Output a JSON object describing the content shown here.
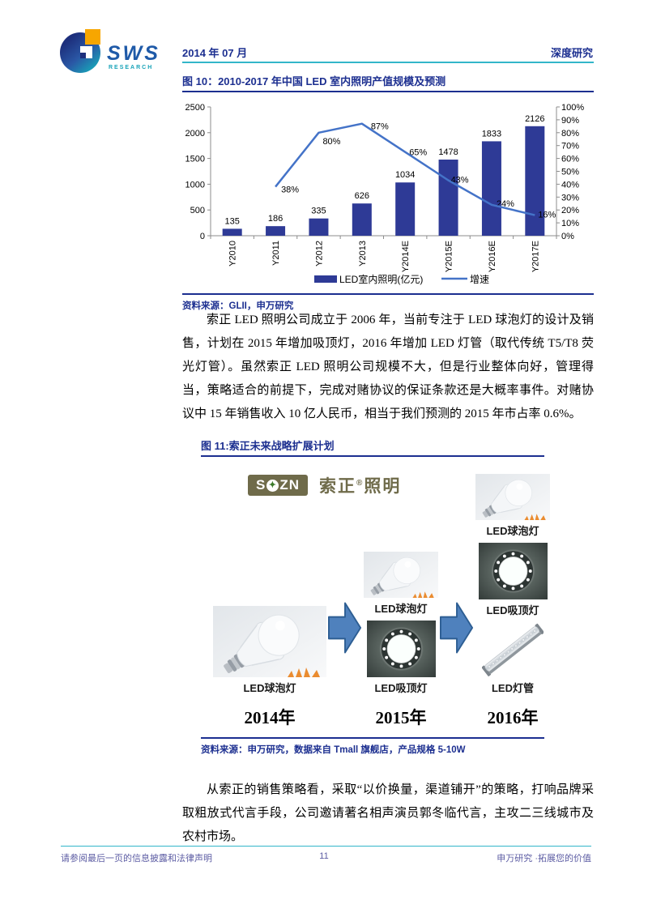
{
  "header": {
    "logo_text": "SWS",
    "logo_sub": "RESEARCH",
    "date": "2014 年 07 月",
    "report_type": "深度研究"
  },
  "figure10": {
    "title": "图 10：2010-2017 年中国 LED 室内照明产值规模及预测",
    "source": "资料来源：GLII，申万研究"
  },
  "chart_data": {
    "type": "bar+line",
    "title": "2010-2017 年中国 LED 室内照明产值规模及预测",
    "categories": [
      "Y2010",
      "Y2011",
      "Y2012",
      "Y2013",
      "Y2014E",
      "Y2015E",
      "Y2016E",
      "Y2017E"
    ],
    "series": [
      {
        "name": "LED室内照明(亿元)",
        "type": "bar",
        "axis": "left",
        "values": [
          135,
          186,
          335,
          626,
          1034,
          1478,
          1833,
          2126
        ]
      },
      {
        "name": "增速",
        "type": "line",
        "axis": "right",
        "unit": "%",
        "values": [
          null,
          38,
          80,
          87,
          65,
          43,
          24,
          16
        ]
      }
    ],
    "left_axis": {
      "min": 0,
      "max": 2500,
      "step": 500
    },
    "right_axis": {
      "min": 0,
      "max": 100,
      "step": 10,
      "unit": "%"
    },
    "colors": {
      "bar": "#2e3a96",
      "line": "#4473c8"
    },
    "legend_position": "bottom",
    "grid": false
  },
  "paragraph1": "索正 LED 照明公司成立于 2006 年，当前专注于 LED 球泡灯的设计及销售，计划在 2015 年增加吸顶灯，2016 年增加 LED 灯管（取代传统 T5/T8 荧光灯管）。虽然索正 LED 照明公司规模不大，但是行业整体向好，管理得当，策略适合的前提下，完成对赌协议的保证条款还是大概率事件。对赌协议中 15 年销售收入 10 亿人民币，相当于我们预测的 2015 年市占率 0.6%。",
  "figure11": {
    "title": "图 11:索正未来战略扩展计划",
    "brand": {
      "badge_left": "S",
      "badge_star": "✦",
      "badge_right": "ZN",
      "name_cn": "索正",
      "reg_mark": "®",
      "name_cn2": "照明"
    },
    "columns": [
      {
        "year": "2014年",
        "items": [
          {
            "label": "LED球泡灯",
            "kind": "bulb",
            "size": "large"
          }
        ]
      },
      {
        "year": "2015年",
        "items": [
          {
            "label": "LED球泡灯",
            "kind": "bulb",
            "size": "small"
          },
          {
            "label": "LED吸顶灯",
            "kind": "ceiling",
            "size": "medium"
          }
        ]
      },
      {
        "year": "2016年",
        "items": [
          {
            "label": "LED球泡灯",
            "kind": "bulb",
            "size": "small"
          },
          {
            "label": "LED吸顶灯",
            "kind": "ceiling",
            "size": "medium"
          },
          {
            "label": "LED灯管",
            "kind": "tube",
            "size": "medium"
          }
        ]
      }
    ],
    "source": "资料来源：申万研究，数据来自 Tmall 旗舰店，产品规格 5-10W"
  },
  "paragraph2": "从索正的销售策略看，采取“以价换量，渠道铺开”的策略，打响品牌采取粗放式代言手段，公司邀请著名相声演员郭冬临代言，主攻二三线城市及农村市场。",
  "footer": {
    "left": "请参阅最后一页的信息披露和法律声明",
    "page": "11",
    "right": "申万研究 ·拓展您的价值"
  }
}
